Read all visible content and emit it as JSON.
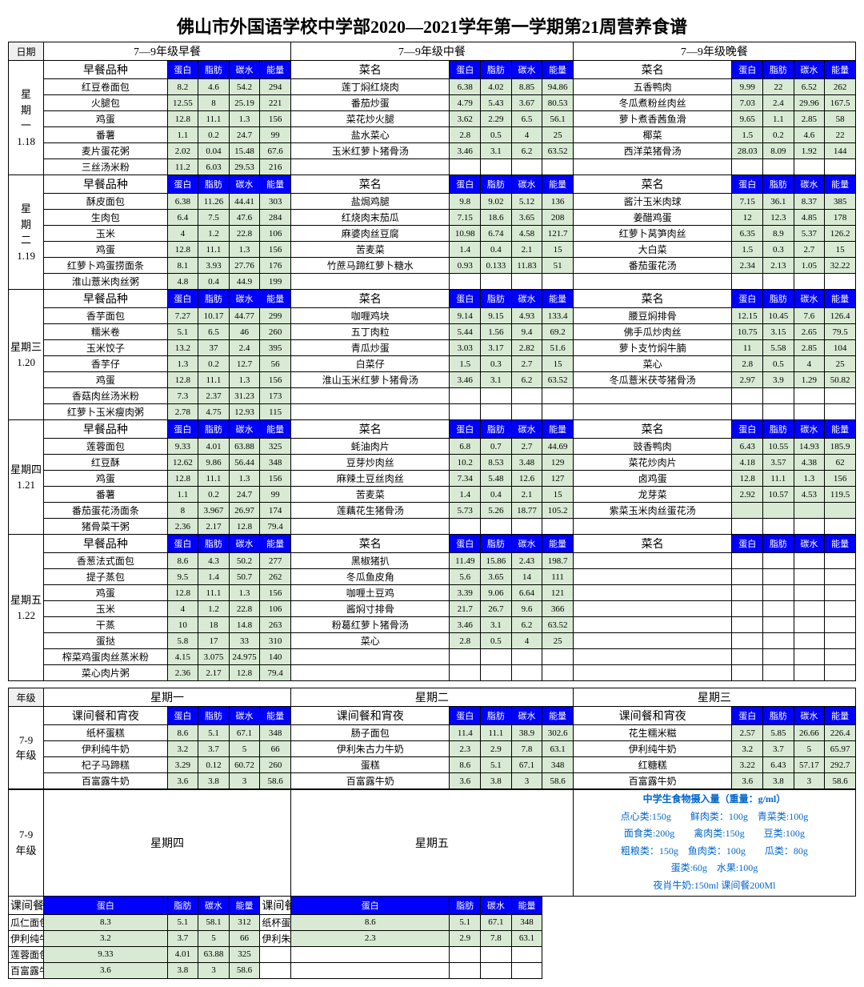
{
  "title": "佛山市外国语学校中学部2020—2021学年第一学期第21周营养食谱",
  "dateLabel": "日期",
  "mealHeaders": [
    "7—9年级早餐",
    "7—9年级中餐",
    "7—9年级晚餐"
  ],
  "subH": {
    "b": "早餐品种",
    "l": "菜名",
    "d": "菜名",
    "p": "蛋白",
    "f": "脂肪",
    "c": "碳水",
    "e": "能量"
  },
  "days": [
    {
      "label": "星\n期\n一\n1.18",
      "rows": [
        [
          [
            "红豆卷面包",
            "8.2",
            "4.6",
            "54.2",
            "294"
          ],
          [
            "莲丁焖红烧肉",
            "6.38",
            "4.02",
            "8.85",
            "94.86"
          ],
          [
            "五香鸭肉",
            "9.99",
            "22",
            "6.52",
            "262"
          ]
        ],
        [
          [
            "火腿包",
            "12.55",
            "8",
            "25.19",
            "221"
          ],
          [
            "番茄炒蛋",
            "4.79",
            "5.43",
            "3.67",
            "80.53"
          ],
          [
            "冬瓜煮粉丝肉丝",
            "7.03",
            "2.4",
            "29.96",
            "167.5"
          ]
        ],
        [
          [
            "鸡蛋",
            "12.8",
            "11.1",
            "1.3",
            "156"
          ],
          [
            "菜花炒火腿",
            "3.62",
            "2.29",
            "6.5",
            "56.1"
          ],
          [
            "萝卜煮香茜鱼滑",
            "9.65",
            "1.1",
            "2.85",
            "58"
          ]
        ],
        [
          [
            "番薯",
            "1.1",
            "0.2",
            "24.7",
            "99"
          ],
          [
            "盐水菜心",
            "2.8",
            "0.5",
            "4",
            "25"
          ],
          [
            "椰菜",
            "1.5",
            "0.2",
            "4.6",
            "22"
          ]
        ],
        [
          [
            "麦片蛋花粥",
            "2.02",
            "0.04",
            "15.48",
            "67.6"
          ],
          [
            "玉米红萝卜猪骨汤",
            "3.46",
            "3.1",
            "6.2",
            "63.52"
          ],
          [
            "西洋菜猪骨汤",
            "28.03",
            "8.09",
            "1.92",
            "144"
          ]
        ],
        [
          [
            "三丝汤米粉",
            "11.2",
            "6.03",
            "29.53",
            "216"
          ],
          [
            "",
            "",
            "",
            "",
            ""
          ],
          [
            "",
            "",
            "",
            "",
            ""
          ]
        ]
      ]
    },
    {
      "label": "星\n期\n二\n1.19",
      "rows": [
        [
          [
            "酥皮面包",
            "6.38",
            "11.26",
            "44.41",
            "303"
          ],
          [
            "盐焗鸡腿",
            "9.8",
            "9.02",
            "5.12",
            "136"
          ],
          [
            "酱汁玉米肉球",
            "7.15",
            "36.1",
            "8.37",
            "385"
          ]
        ],
        [
          [
            "生肉包",
            "6.4",
            "7.5",
            "47.6",
            "284"
          ],
          [
            "红烧肉末茄瓜",
            "7.15",
            "18.6",
            "3.65",
            "208"
          ],
          [
            "姜醋鸡蛋",
            "12",
            "12.3",
            "4.85",
            "178"
          ]
        ],
        [
          [
            "玉米",
            "4",
            "1.2",
            "22.8",
            "106"
          ],
          [
            "麻婆肉丝豆腐",
            "10.98",
            "6.74",
            "4.58",
            "121.7"
          ],
          [
            "红萝卜莴笋肉丝",
            "6.35",
            "8.9",
            "5.37",
            "126.2"
          ]
        ],
        [
          [
            "鸡蛋",
            "12.8",
            "11.1",
            "1.3",
            "156"
          ],
          [
            "苦麦菜",
            "1.4",
            "0.4",
            "2.1",
            "15"
          ],
          [
            "大白菜",
            "1.5",
            "0.3",
            "2.7",
            "15"
          ]
        ],
        [
          [
            "红萝卜鸡蛋捞面条",
            "8.1",
            "3.93",
            "27.76",
            "176"
          ],
          [
            "竹蔗马蹄红萝卜糖水",
            "0.93",
            "0.133",
            "11.83",
            "51"
          ],
          [
            "番茄蛋花汤",
            "2.34",
            "2.13",
            "1.05",
            "32.22"
          ]
        ],
        [
          [
            "淮山薏米肉丝粥",
            "4.8",
            "0.4",
            "44.9",
            "199"
          ],
          [
            "",
            "",
            "",
            "",
            ""
          ],
          [
            "",
            "",
            "",
            "",
            ""
          ]
        ]
      ]
    },
    {
      "label": "星期三\n1.20",
      "rows": [
        [
          [
            "香芋面包",
            "7.27",
            "10.17",
            "44.77",
            "299"
          ],
          [
            "咖喱鸡块",
            "9.14",
            "9.15",
            "4.93",
            "133.4"
          ],
          [
            "腰豆焖排骨",
            "12.15",
            "10.45",
            "7.6",
            "126.4"
          ]
        ],
        [
          [
            "糯米卷",
            "5.1",
            "6.5",
            "46",
            "260"
          ],
          [
            "五丁肉粒",
            "5.44",
            "1.56",
            "9.4",
            "69.2"
          ],
          [
            "佛手瓜炒肉丝",
            "10.75",
            "3.15",
            "2.65",
            "79.5"
          ]
        ],
        [
          [
            "玉米饺子",
            "13.2",
            "37",
            "2.4",
            "395"
          ],
          [
            "青瓜炒蛋",
            "3.03",
            "3.17",
            "2.82",
            "51.6"
          ],
          [
            "萝卜支竹焖牛腩",
            "11",
            "5.58",
            "2.85",
            "104"
          ]
        ],
        [
          [
            "香芋仔",
            "1.3",
            "0.2",
            "12.7",
            "56"
          ],
          [
            "白菜仔",
            "1.5",
            "0.3",
            "2.7",
            "15"
          ],
          [
            "菜心",
            "2.8",
            "0.5",
            "4",
            "25"
          ]
        ],
        [
          [
            "鸡蛋",
            "12.8",
            "11.1",
            "1.3",
            "156"
          ],
          [
            "淮山玉米红萝卜猪骨汤",
            "3.46",
            "3.1",
            "6.2",
            "63.52"
          ],
          [
            "冬瓜薏米茯苓猪骨汤",
            "2.97",
            "3.9",
            "1.29",
            "50.82"
          ]
        ],
        [
          [
            "香菇肉丝汤米粉",
            "7.3",
            "2.37",
            "31.23",
            "173"
          ],
          [
            "",
            "",
            "",
            "",
            ""
          ],
          [
            "",
            "",
            "",
            "",
            ""
          ]
        ],
        [
          [
            "红萝卜玉米瘦肉粥",
            "2.78",
            "4.75",
            "12.93",
            "115"
          ],
          [
            "",
            "",
            "",
            "",
            ""
          ],
          [
            "",
            "",
            "",
            "",
            ""
          ]
        ]
      ]
    },
    {
      "label": "星期四\n1.21",
      "rows": [
        [
          [
            "莲蓉面包",
            "9.33",
            "4.01",
            "63.88",
            "325"
          ],
          [
            "蚝油肉片",
            "6.8",
            "0.7",
            "2.7",
            "44.69"
          ],
          [
            "豉香鸭肉",
            "6.43",
            "10.55",
            "14.93",
            "185.9"
          ]
        ],
        [
          [
            "红豆酥",
            "12.62",
            "9.86",
            "56.44",
            "348"
          ],
          [
            "豆芽炒肉丝",
            "10.2",
            "8.53",
            "3.48",
            "129"
          ],
          [
            "菜花炒肉片",
            "4.18",
            "3.57",
            "4.38",
            "62"
          ]
        ],
        [
          [
            "鸡蛋",
            "12.8",
            "11.1",
            "1.3",
            "156"
          ],
          [
            "麻辣土豆丝肉丝",
            "7.34",
            "5.48",
            "12.6",
            "127"
          ],
          [
            "卤鸡蛋",
            "12.8",
            "11.1",
            "1.3",
            "156"
          ]
        ],
        [
          [
            "番薯",
            "1.1",
            "0.2",
            "24.7",
            "99"
          ],
          [
            "苦麦菜",
            "1.4",
            "0.4",
            "2.1",
            "15"
          ],
          [
            "龙芽菜",
            "2.92",
            "10.57",
            "4.53",
            "119.5"
          ]
        ],
        [
          [
            "番茄蛋花汤面条",
            "8",
            "3.967",
            "26.97",
            "174"
          ],
          [
            "莲藕花生猪骨汤",
            "5.73",
            "5.26",
            "18.77",
            "105.2"
          ],
          [
            "紫菜玉米肉丝蛋花汤",
            "",
            "",
            "",
            ""
          ]
        ],
        [
          [
            "猪骨菜干粥",
            "2.36",
            "2.17",
            "12.8",
            "79.4"
          ],
          [
            "",
            "",
            "",
            "",
            ""
          ],
          [
            "",
            "",
            "",
            "",
            ""
          ]
        ]
      ]
    },
    {
      "label": "星期五\n1.22",
      "rows": [
        [
          [
            "香葱法式面包",
            "8.6",
            "4.3",
            "50.2",
            "277"
          ],
          [
            "黑椒猪扒",
            "11.49",
            "15.86",
            "2.43",
            "198.7"
          ],
          [
            "",
            "",
            "",
            "",
            ""
          ]
        ],
        [
          [
            "提子蒸包",
            "9.5",
            "1.4",
            "50.7",
            "262"
          ],
          [
            "冬瓜鱼皮角",
            "5.6",
            "3.65",
            "14",
            "111"
          ],
          [
            "",
            "",
            "",
            "",
            ""
          ]
        ],
        [
          [
            "鸡蛋",
            "12.8",
            "11.1",
            "1.3",
            "156"
          ],
          [
            "咖喱土豆鸡",
            "3.39",
            "9.06",
            "6.64",
            "121"
          ],
          [
            "",
            "",
            "",
            "",
            ""
          ]
        ],
        [
          [
            "玉米",
            "4",
            "1.2",
            "22.8",
            "106"
          ],
          [
            "酱焖寸排骨",
            "21.7",
            "26.7",
            "9.6",
            "366"
          ],
          [
            "",
            "",
            "",
            "",
            ""
          ]
        ],
        [
          [
            "干蒸",
            "10",
            "18",
            "14.8",
            "263"
          ],
          [
            "粉葛红萝卜猪骨汤",
            "3.46",
            "3.1",
            "6.2",
            "63.52"
          ],
          [
            "",
            "",
            "",
            "",
            ""
          ]
        ],
        [
          [
            "蛋挞",
            "5.8",
            "17",
            "33",
            "310"
          ],
          [
            "菜心",
            "2.8",
            "0.5",
            "4",
            "25"
          ],
          [
            "",
            "",
            "",
            "",
            ""
          ]
        ],
        [
          [
            "榨菜鸡蛋肉丝蒸米粉",
            "4.15",
            "3.075",
            "24.975",
            "140"
          ],
          [
            "",
            "",
            "",
            "",
            ""
          ],
          [
            "",
            "",
            "",
            "",
            ""
          ]
        ],
        [
          [
            "菜心肉片粥",
            "2.36",
            "2.17",
            "12.8",
            "79.4"
          ],
          [
            "",
            "",
            "",
            "",
            ""
          ],
          [
            "",
            "",
            "",
            "",
            ""
          ]
        ]
      ]
    }
  ],
  "gradeLabel": "年级",
  "grade": "7-9\n年级",
  "snackDays1": [
    "星期一",
    "星期二",
    "星期三"
  ],
  "snackDays2": [
    "星期四",
    "星期五"
  ],
  "snackHeader": "课间餐和宵夜",
  "snackHeader2": "课间餐",
  "snacks1": [
    [
      [
        "纸杯蛋糕",
        "8.6",
        "5.1",
        "67.1",
        "348"
      ],
      [
        "肠子面包",
        "11.4",
        "11.1",
        "38.9",
        "302.6"
      ],
      [
        "花生糯米糍",
        "2.57",
        "5.85",
        "26.66",
        "226.4"
      ]
    ],
    [
      [
        "伊利纯牛奶",
        "3.2",
        "3.7",
        "5",
        "66"
      ],
      [
        "伊利朱古力牛奶",
        "2.3",
        "2.9",
        "7.8",
        "63.1"
      ],
      [
        "伊利纯牛奶",
        "3.2",
        "3.7",
        "5",
        "65.97"
      ]
    ],
    [
      [
        "杞子马蹄糕",
        "3.29",
        "0.12",
        "60.72",
        "260"
      ],
      [
        "蛋糕",
        "8.6",
        "5.1",
        "67.1",
        "348"
      ],
      [
        "红糖糕",
        "3.22",
        "6.43",
        "57.17",
        "292.7"
      ]
    ],
    [
      [
        "百富露牛奶",
        "3.6",
        "3.8",
        "3",
        "58.6"
      ],
      [
        "百富露牛奶",
        "3.6",
        "3.8",
        "3",
        "58.6"
      ],
      [
        "百富露牛奶",
        "3.6",
        "3.8",
        "3",
        "58.6"
      ]
    ]
  ],
  "snacks2": [
    [
      [
        "瓜仁面包",
        "8.3",
        "5.1",
        "58.1",
        "312"
      ],
      [
        "纸杯蛋糕",
        "8.6",
        "5.1",
        "67.1",
        "348"
      ]
    ],
    [
      [
        "伊利纯牛奶",
        "3.2",
        "3.7",
        "5",
        "66"
      ],
      [
        "伊利朱古力牛奶",
        "2.3",
        "2.9",
        "7.8",
        "63.1"
      ]
    ],
    [
      [
        "莲蓉面包",
        "9.33",
        "4.01",
        "63.88",
        "325"
      ],
      [
        "",
        "",
        "",
        "",
        ""
      ]
    ],
    [
      [
        "百富露牛奶",
        "3.6",
        "3.8",
        "3",
        "58.6"
      ],
      [
        "",
        "",
        "",
        "",
        ""
      ]
    ]
  ],
  "footer": {
    "title": "中学生食物摄入量（重量：g/ml）",
    "lines": [
      "点心类:150g　　鲜肉类：100g　青菜类:100g",
      "面食类:200g　　禽肉类:150g　　豆类:100g",
      "粗粮类：150g　鱼肉类：100g　　瓜类：80g",
      "蛋类:60g　水果:100g",
      "夜肖牛奶:150ml 课间餐200Ml"
    ]
  }
}
